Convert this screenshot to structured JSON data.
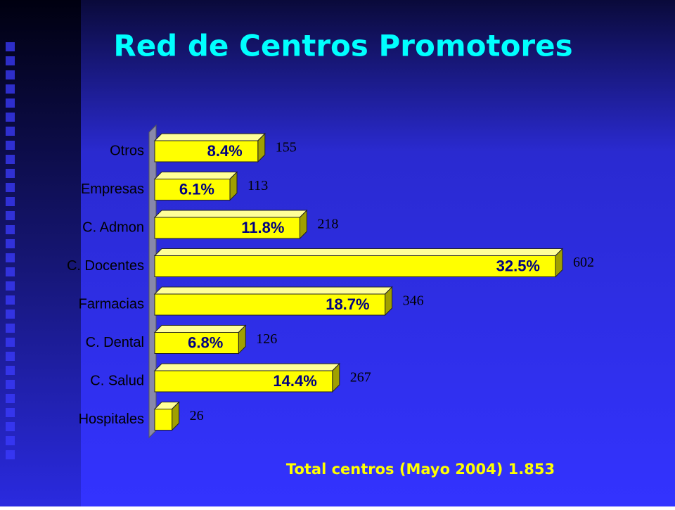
{
  "chart_data": {
    "type": "bar",
    "orientation": "horizontal",
    "title": "Red de Centros Promotores",
    "categories": [
      "Otros",
      "Empresas",
      "C. Admon",
      "C. Docentes",
      "Farmacias",
      "C. Dental",
      "C. Salud",
      "Hospitales"
    ],
    "values": [
      155,
      113,
      218,
      602,
      346,
      126,
      267,
      26
    ],
    "percent_labels": [
      "8.4%",
      "6.1%",
      "11.8%",
      "32.5%",
      "18.7%",
      "6.8%",
      "14.4%",
      null
    ],
    "color": "#ffff00",
    "footer": "Total centros (Mayo 2004) 1.853"
  }
}
